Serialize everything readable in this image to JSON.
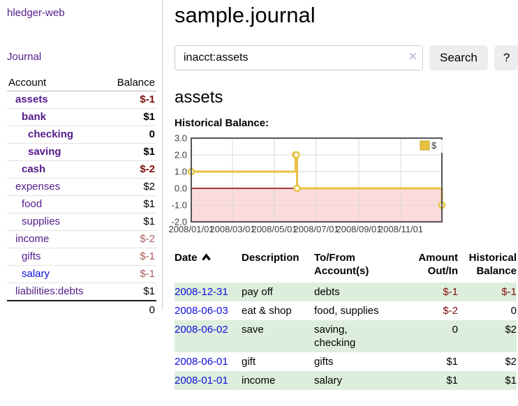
{
  "colors": {
    "link_purple": "#551a8b",
    "link_blue": "#0e0edd",
    "negative_strong": "#7e0c0c",
    "negative_muted": "#aa5a5a",
    "row_green": "#ddeedd",
    "accent_gold": "#e8c240"
  },
  "sidebar": {
    "app_title": "hledger-web",
    "journal_link": "Journal",
    "accounts": {
      "header_account": "Account",
      "header_balance": "Balance",
      "rows": [
        {
          "account": "assets",
          "balance": "$-1",
          "level": 1,
          "bold": true,
          "neg": "strong"
        },
        {
          "account": "bank",
          "balance": "$1",
          "level": 2,
          "bold": true
        },
        {
          "account": "checking",
          "balance": "0",
          "level": 3,
          "bold": true
        },
        {
          "account": "saving",
          "balance": "$1",
          "level": 3,
          "bold": true
        },
        {
          "account": "cash",
          "balance": "$-2",
          "level": 2,
          "bold": true,
          "neg": "strong"
        },
        {
          "account": "expenses",
          "balance": "$2",
          "level": 1
        },
        {
          "account": "food",
          "balance": "$1",
          "level": 2
        },
        {
          "account": "supplies",
          "balance": "$1",
          "level": 2
        },
        {
          "account": "income",
          "balance": "$-2",
          "level": 1,
          "neg": "muted"
        },
        {
          "account": "gifts",
          "balance": "$-1",
          "level": 2,
          "neg": "muted"
        },
        {
          "account": "salary",
          "balance": "$-1",
          "level": 2,
          "neg": "muted",
          "unvisited": true
        },
        {
          "account": "liabilities:debts",
          "balance": "$1",
          "level": 1
        }
      ],
      "total": "0"
    }
  },
  "main": {
    "title": "sample.journal",
    "search": {
      "value": "inacct:assets",
      "clear_icon": "×",
      "search_button": "Search",
      "help_button": "?"
    },
    "account_heading": "assets",
    "chart_title": "Historical Balance:"
  },
  "chart_data": {
    "type": "line",
    "step": true,
    "title": "Historical Balance",
    "x_range": [
      "2008-01-01",
      "2008-12-31"
    ],
    "ylim": [
      -2.0,
      3.0
    ],
    "yticks": [
      "3.0",
      "2.0",
      "1.0",
      "0.0",
      "-1.0",
      "-2.0"
    ],
    "xticks": [
      "2008/01/01",
      "2008/03/01",
      "2008/05/01",
      "2008/07/01",
      "2008/09/01",
      "2008/11/01"
    ],
    "legend": {
      "position": "top-right"
    },
    "series": [
      {
        "name": "$",
        "color": "#e8c240",
        "points": [
          [
            "2008-01-01",
            1
          ],
          [
            "2008-06-01",
            2
          ],
          [
            "2008-06-02",
            2
          ],
          [
            "2008-06-03",
            0
          ],
          [
            "2008-12-31",
            -1
          ]
        ]
      }
    ],
    "negative_region_color": "#fbdbdb",
    "zero_line_color": "#8b0000",
    "grid_color": "#d9d9d9",
    "border_color": "#545454",
    "tick_label_color": "#3c3c3c"
  },
  "register": {
    "headers": [
      {
        "label": "Date",
        "sortable": true
      },
      {
        "label": "Description"
      },
      {
        "label": "To/From Account(s)"
      },
      {
        "label": "Amount Out/In"
      },
      {
        "label": "Historical Balance"
      }
    ],
    "rows": [
      {
        "date": "2008-12-31",
        "description": "pay off",
        "accounts": "debts",
        "amount": "$-1",
        "amount_neg": true,
        "balance": "$-1",
        "balance_neg": true
      },
      {
        "date": "2008-06-03",
        "description": "eat & shop",
        "accounts": "food, supplies",
        "amount": "$-2",
        "amount_neg": true,
        "balance": "0"
      },
      {
        "date": "2008-06-02",
        "description": "save",
        "accounts": "saving, checking",
        "amount": "0",
        "balance": "$2"
      },
      {
        "date": "2008-06-01",
        "description": "gift",
        "accounts": "gifts",
        "amount": "$1",
        "balance": "$2"
      },
      {
        "date": "2008-01-01",
        "description": "income",
        "accounts": "salary",
        "amount": "$1",
        "balance": "$1"
      }
    ]
  }
}
